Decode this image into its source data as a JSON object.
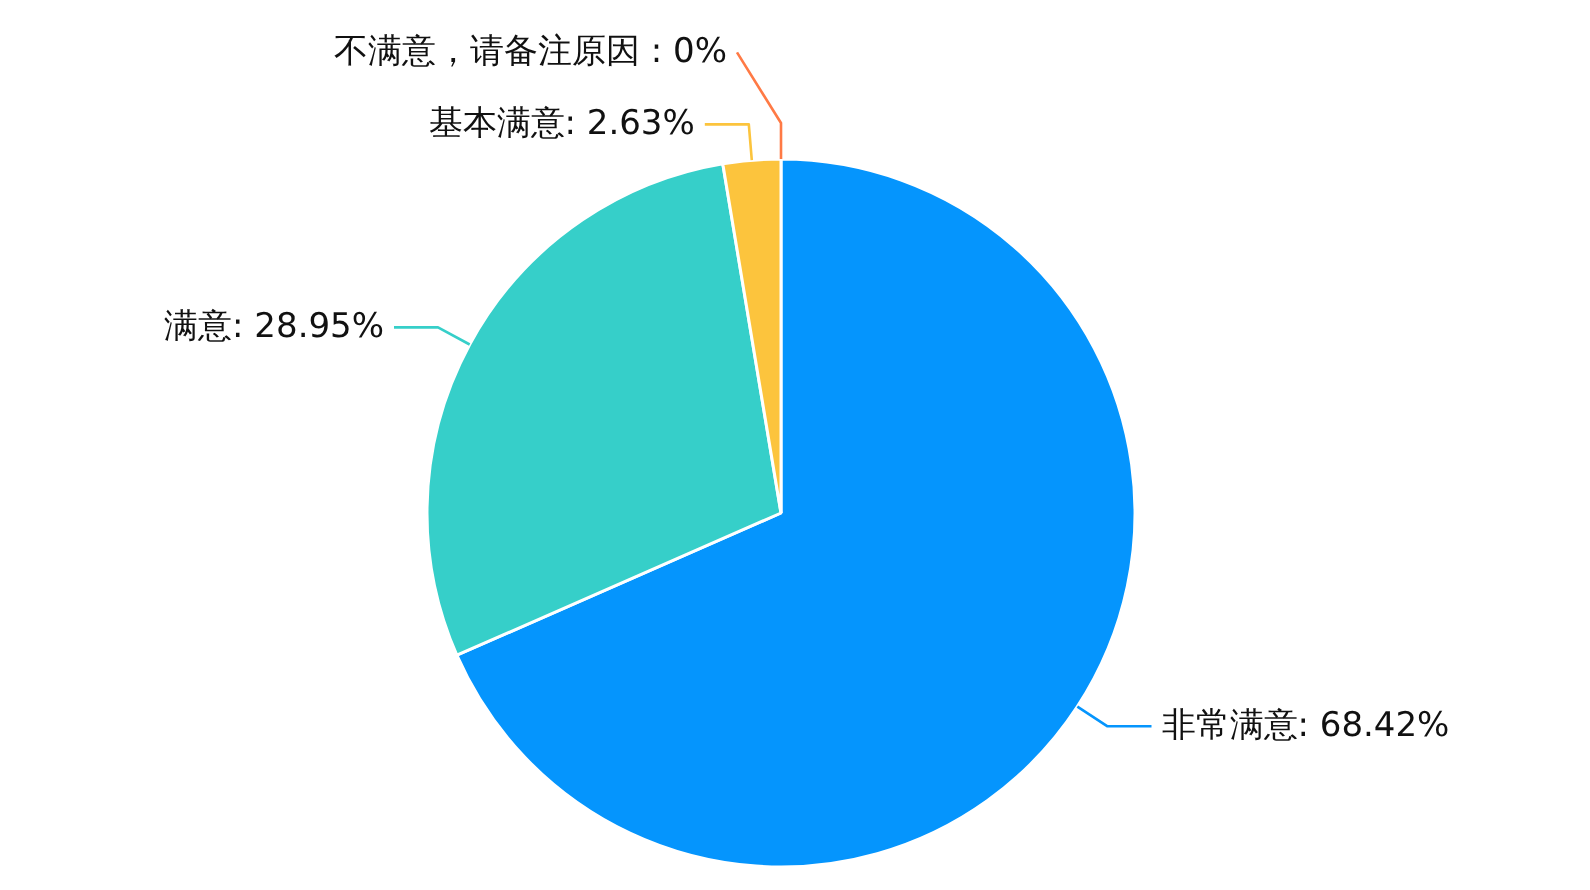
{
  "chart_data": {
    "type": "pie",
    "categories": [
      "非常满意",
      "满意",
      "基本满意",
      "不满意，请备注原因"
    ],
    "values": [
      68.42,
      28.95,
      2.63,
      0
    ],
    "colors": [
      "#0595fd",
      "#36cfc9",
      "#fcc43d",
      "#ff7a45"
    ],
    "value_labels": [
      ": 68.42%",
      ": 28.95%",
      ": 2.63%",
      " : 0%"
    ]
  }
}
